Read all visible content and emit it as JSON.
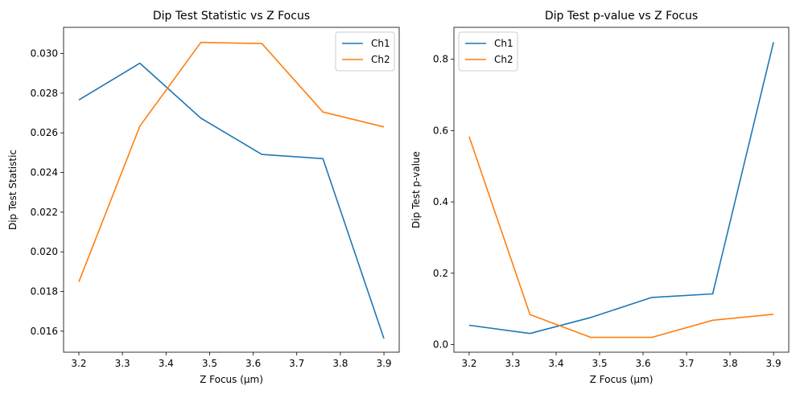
{
  "chart_data": [
    {
      "type": "line",
      "title": "Dip Test Statistic vs Z Focus",
      "xlabel": "Z Focus (µm)",
      "ylabel": "Dip Test Statistic",
      "xlim": [
        3.165,
        3.935
      ],
      "ylim": [
        0.01494,
        0.03132
      ],
      "xticks": [
        3.2,
        3.3,
        3.4,
        3.5,
        3.6,
        3.7,
        3.8,
        3.9
      ],
      "xtick_labels": [
        "3.2",
        "3.3",
        "3.4",
        "3.5",
        "3.6",
        "3.7",
        "3.8",
        "3.9"
      ],
      "yticks": [
        0.016,
        0.018,
        0.02,
        0.022,
        0.024,
        0.026,
        0.028,
        0.03
      ],
      "ytick_labels": [
        "0.016",
        "0.018",
        "0.020",
        "0.022",
        "0.024",
        "0.026",
        "0.028",
        "0.030"
      ],
      "x": [
        3.2,
        3.34,
        3.48,
        3.62,
        3.76,
        3.9
      ],
      "series": [
        {
          "name": "Ch1",
          "color": "#1f77b4",
          "values": [
            0.02766,
            0.02951,
            0.02674,
            0.02491,
            0.0247,
            0.01563
          ]
        },
        {
          "name": "Ch2",
          "color": "#ff7f0e",
          "values": [
            0.01849,
            0.02634,
            0.03056,
            0.0305,
            0.02705,
            0.0263
          ]
        }
      ],
      "legend": "upper right",
      "grid": false
    },
    {
      "type": "line",
      "title": "Dip Test p-value vs Z Focus",
      "xlabel": "Z Focus (µm)",
      "ylabel": "Dip Test p-value",
      "xlim": [
        3.165,
        3.935
      ],
      "ylim": [
        -0.0215,
        0.8895
      ],
      "xticks": [
        3.2,
        3.3,
        3.4,
        3.5,
        3.6,
        3.7,
        3.8,
        3.9
      ],
      "xtick_labels": [
        "3.2",
        "3.3",
        "3.4",
        "3.5",
        "3.6",
        "3.7",
        "3.8",
        "3.9"
      ],
      "yticks": [
        0.0,
        0.2,
        0.4,
        0.6,
        0.8
      ],
      "ytick_labels": [
        "0.0",
        "0.2",
        "0.4",
        "0.6",
        "0.8"
      ],
      "x": [
        3.2,
        3.34,
        3.48,
        3.62,
        3.76,
        3.9
      ],
      "series": [
        {
          "name": "Ch1",
          "color": "#1f77b4",
          "values": [
            0.054,
            0.031,
            0.076,
            0.132,
            0.142,
            0.848
          ]
        },
        {
          "name": "Ch2",
          "color": "#ff7f0e",
          "values": [
            0.583,
            0.084,
            0.02,
            0.02,
            0.068,
            0.085
          ]
        }
      ],
      "legend": "upper left",
      "grid": false
    }
  ]
}
